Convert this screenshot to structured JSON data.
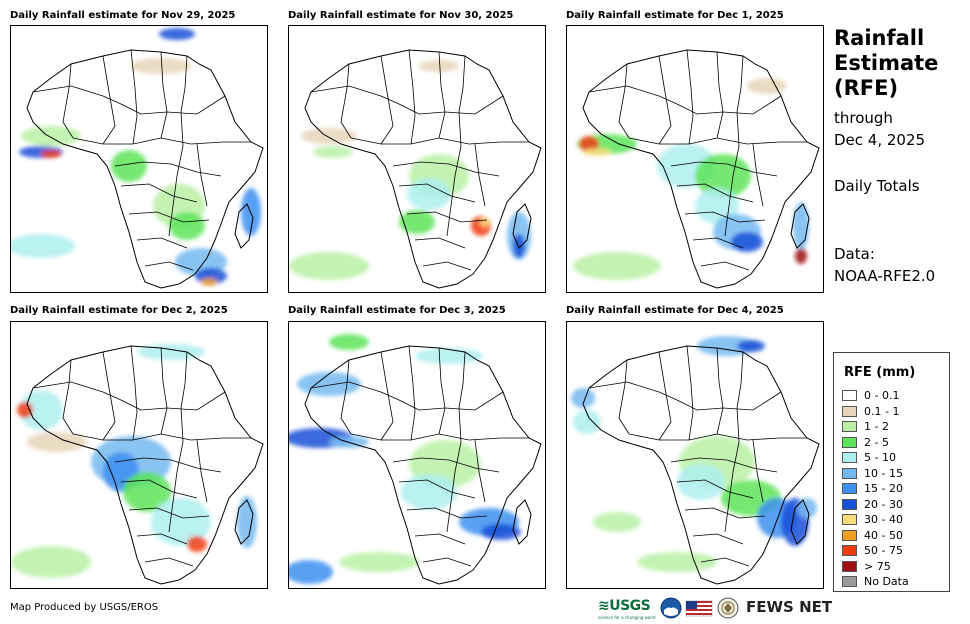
{
  "panels": [
    {
      "title": "Daily Rainfall estimate for Nov 29, 2025"
    },
    {
      "title": "Daily Rainfall estimate for Nov 30, 2025"
    },
    {
      "title": "Daily Rainfall estimate for Dec 1, 2025"
    },
    {
      "title": "Daily Rainfall estimate for Dec 2, 2025"
    },
    {
      "title": "Daily Rainfall estimate for Dec 3, 2025"
    },
    {
      "title": "Daily Rainfall estimate for Dec 4, 2025"
    }
  ],
  "side": {
    "title_line1": "Rainfall",
    "title_line2": "Estimate",
    "title_line3": "(RFE)",
    "through": "through",
    "date": "Dec 4, 2025",
    "totals": "Daily Totals",
    "data_label": "Data:",
    "data_source": "NOAA-RFE2.0"
  },
  "legend": {
    "title": "RFE (mm)",
    "items": [
      {
        "label": "0 - 0.1",
        "color": "#ffffff"
      },
      {
        "label": "0.1 - 1",
        "color": "#e6d5b8"
      },
      {
        "label": "1 - 2",
        "color": "#b9f0a6"
      },
      {
        "label": "2 - 5",
        "color": "#5de45a"
      },
      {
        "label": "5 - 10",
        "color": "#aeeeee"
      },
      {
        "label": "10 - 15",
        "color": "#74b8f0"
      },
      {
        "label": "15 - 20",
        "color": "#3d8ff0"
      },
      {
        "label": "20 - 30",
        "color": "#1850d8"
      },
      {
        "label": "30 - 40",
        "color": "#f8dc78"
      },
      {
        "label": "40 - 50",
        "color": "#f0a020"
      },
      {
        "label": "50 - 75",
        "color": "#f03c10"
      },
      {
        "label": "> 75",
        "color": "#a01010"
      },
      {
        "label": "No Data",
        "color": "#999999"
      }
    ]
  },
  "credit": "Map Produced by USGS/EROS",
  "logos": {
    "usgs": "USGS",
    "usgs_tagline": "science for a changing world",
    "fews": "FEWS NET"
  }
}
